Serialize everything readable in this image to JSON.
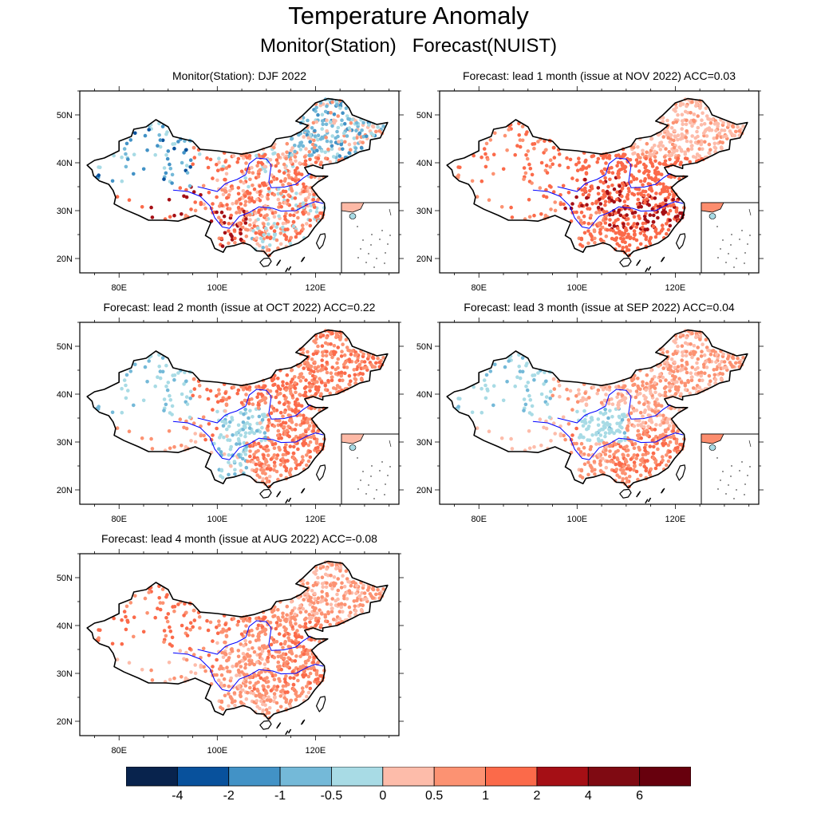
{
  "header": {
    "title": "Temperature Anomaly",
    "subtitle": "Monitor(Station)   Forecast(NUIST)"
  },
  "map": {
    "lon_ticks": [
      "80E",
      "100E",
      "120E"
    ],
    "lat_ticks": [
      "50N",
      "40N",
      "30N",
      "20N"
    ],
    "lon_range": [
      72,
      137
    ],
    "lat_range": [
      17,
      55
    ]
  },
  "panels": [
    {
      "title": "Monitor(Station): DJF 2022",
      "pattern": {
        "east": 0.8,
        "northwest": -1.2,
        "northeast": -0.2,
        "tibet": 1.5,
        "yangtze": 0.6,
        "southcoast": 0.5,
        "southwest": 1.6,
        "center": 0.9,
        "noise": 1.1
      },
      "inset_fill": "#fdb9a6"
    },
    {
      "title": "Forecast: lead 1 month (issue at NOV 2022) ACC=0.03",
      "pattern": {
        "east": 1.6,
        "northwest": 1.0,
        "northeast": 0.4,
        "tibet": 0.9,
        "yangtze": 2.0,
        "southcoast": 1.5,
        "southwest": 1.0,
        "center": 1.9,
        "noise": 0.3
      },
      "inset_fill": "#fc8d6e"
    },
    {
      "title": "Forecast: lead 2 month (issue at OCT 2022) ACC=0.22",
      "pattern": {
        "east": 1.0,
        "northwest": -0.4,
        "northeast": 1.0,
        "tibet": 0.6,
        "yangtze": 1.0,
        "southcoast": 0.8,
        "southwest": -0.3,
        "center": -0.3,
        "noise": 0.4
      },
      "inset_fill": "#fdb9a6"
    },
    {
      "title": "Forecast: lead 3 month (issue at SEP 2022) ACC=0.04",
      "pattern": {
        "east": 0.4,
        "northwest": -0.4,
        "northeast": 0.6,
        "tibet": 0.2,
        "yangtze": 0.9,
        "southcoast": 0.9,
        "southwest": 0.7,
        "center": -0.3,
        "noise": 0.3
      },
      "inset_fill": "#fc8d6e"
    },
    {
      "title": "Forecast: lead 4 month (issue at AUG 2022) ACC=-0.08",
      "pattern": {
        "east": 0.9,
        "northwest": 1.1,
        "northeast": 0.6,
        "tibet": 0.3,
        "yangtze": 0.9,
        "southcoast": 0.6,
        "southwest": 0.6,
        "center": 0.6,
        "noise": 0.3
      },
      "inset_fill": "#fdb9a6"
    }
  ],
  "colorbar": {
    "colors": [
      "#08234d",
      "#08519c",
      "#4292c6",
      "#74b9d8",
      "#a8dbe5",
      "#fdbcaa",
      "#fc9272",
      "#fb6a4a",
      "#a50f15",
      "#7f0a12",
      "#67000d"
    ],
    "labels": [
      "-4",
      "-2",
      "-1",
      "-0.5",
      "0",
      "0.5",
      "1",
      "2",
      "4",
      "6"
    ],
    "bounds": [
      -4,
      -2,
      -1,
      -0.5,
      0,
      0.5,
      1,
      2,
      4,
      6
    ]
  }
}
